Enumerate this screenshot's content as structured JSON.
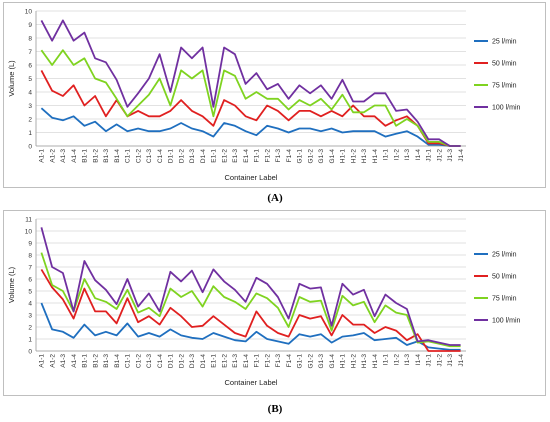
{
  "captions": {
    "a": "(A)",
    "b": "(B)"
  },
  "chart_data": [
    {
      "id": "A",
      "type": "line",
      "xlabel": "Container Label",
      "ylabel": "Volume (L)",
      "ylim": [
        0,
        10
      ],
      "yticks": [
        0,
        1,
        2,
        3,
        4,
        5,
        6,
        7,
        8,
        9,
        10
      ],
      "grid": true,
      "legend": "right",
      "categories": [
        "A1-1",
        "A1-2",
        "A1-3",
        "A1-4",
        "B1-1",
        "B1-2",
        "B1-3",
        "B1-4",
        "C1-1",
        "C1-2",
        "C1-3",
        "C1-4",
        "D1-1",
        "D1-2",
        "D1-3",
        "D1-4",
        "E1-1",
        "E1-2",
        "E1-3",
        "E1-4",
        "F1-1",
        "F1-2",
        "F1-3",
        "F1-4",
        "G1-1",
        "G1-2",
        "G1-3",
        "G1-4",
        "H1-1",
        "H1-2",
        "H1-3",
        "H1-4",
        "I1-1",
        "I1-2",
        "I1-3",
        "I1-4",
        "J1-1",
        "J1-2",
        "J1-3",
        "J1-4"
      ],
      "xticks": [
        "A1-1",
        "A1-2",
        "A1-3",
        "A1-4",
        "B1-1",
        "B1-2",
        "B1-3",
        "B1-4",
        "C1-1",
        "C1-2",
        "C1-3",
        "C1-4",
        "D1-1",
        "D1-2",
        "D1-3",
        "D1-4",
        "E1-1",
        "E1-2",
        "E1-3",
        "E1-4",
        "F1-1",
        "F1-2",
        "F1-3",
        "F1-4",
        "G1-1",
        "G1-2",
        "G1-3",
        "G1-4",
        "H1-1",
        "H1-2",
        "H1-3",
        "H1-4",
        "I1-1",
        "I1-2",
        "I1-3",
        "I1-4",
        "J1-1",
        "J1-2",
        "J1-3",
        "J1-4"
      ],
      "series": [
        {
          "name": "25 l/min",
          "color": "#1f6fbf",
          "values": [
            2.8,
            2.1,
            1.9,
            2.2,
            1.5,
            1.8,
            1.1,
            1.6,
            1.1,
            1.3,
            1.1,
            1.1,
            1.3,
            1.7,
            1.3,
            1.1,
            0.7,
            1.7,
            1.5,
            1.1,
            0.8,
            1.5,
            1.3,
            1.0,
            1.3,
            1.3,
            1.1,
            1.3,
            1.0,
            1.1,
            1.1,
            1.1,
            0.7,
            0.9,
            1.1,
            0.7,
            0.1,
            0.1,
            0.0,
            0.0
          ]
        },
        {
          "name": "50 l/min",
          "color": "#e02020",
          "values": [
            5.6,
            4.1,
            3.7,
            4.5,
            3.0,
            3.7,
            2.2,
            3.4,
            2.2,
            2.6,
            2.2,
            2.2,
            2.6,
            3.4,
            2.6,
            2.2,
            1.5,
            3.4,
            3.0,
            2.2,
            1.9,
            3.0,
            2.6,
            1.9,
            2.6,
            2.6,
            2.2,
            2.6,
            2.2,
            3.0,
            2.2,
            2.2,
            1.5,
            1.9,
            2.2,
            1.5,
            0.2,
            0.2,
            0.0,
            0.0
          ]
        },
        {
          "name": "75 l/min",
          "color": "#7fd320",
          "values": [
            7.1,
            6.0,
            7.1,
            6.0,
            6.5,
            5.0,
            4.7,
            3.5,
            2.2,
            3.0,
            3.8,
            5.0,
            3.0,
            5.6,
            5.0,
            5.6,
            2.2,
            5.6,
            5.2,
            3.5,
            4.0,
            3.5,
            3.5,
            2.7,
            3.4,
            3.0,
            3.5,
            2.7,
            3.8,
            2.5,
            2.5,
            3.0,
            3.0,
            1.5,
            2.0,
            1.5,
            0.3,
            0.3,
            0.0,
            0.0
          ]
        },
        {
          "name": "100 l/min",
          "color": "#7030a0",
          "values": [
            9.3,
            7.8,
            9.3,
            7.8,
            8.4,
            6.5,
            6.2,
            4.9,
            2.9,
            3.9,
            5.0,
            6.8,
            4.0,
            7.3,
            6.5,
            7.3,
            2.9,
            7.3,
            6.8,
            4.6,
            5.4,
            4.2,
            4.6,
            3.5,
            4.5,
            3.9,
            4.5,
            3.5,
            4.9,
            3.3,
            3.3,
            3.9,
            3.9,
            2.6,
            2.7,
            1.8,
            0.5,
            0.5,
            0.0,
            0.0
          ]
        }
      ]
    },
    {
      "id": "B",
      "type": "line",
      "xlabel": "Container Label",
      "ylabel": "Volume (L)",
      "ylim": [
        0,
        11
      ],
      "yticks": [
        0,
        1,
        2,
        3,
        4,
        5,
        6,
        7,
        8,
        9,
        10,
        11
      ],
      "grid": true,
      "legend": "right",
      "categories": [
        "A1-1",
        "A1-2",
        "A1-3",
        "A1-4",
        "B1-1",
        "B1-2",
        "B1-3",
        "B1-4",
        "C1-1",
        "C1-2",
        "C1-3",
        "C1-4",
        "D1-1",
        "D1-2",
        "D1-3",
        "D1-4",
        "E1-1",
        "E1-2",
        "E1-3",
        "E1-4",
        "F1-1",
        "F1-2",
        "F1-3",
        "F1-4",
        "G1-1",
        "G1-2",
        "G1-3",
        "G1-4",
        "H1-1",
        "H1-2",
        "H1-3",
        "H1-4",
        "I1-1",
        "I1-2",
        "I1-3",
        "I1-4",
        "J1-1",
        "J1-2",
        "J1-3",
        "J1-4"
      ],
      "xticks": [
        "A1-1",
        "A1-2",
        "A1-3",
        "A1-4",
        "B1-1",
        "B1-2",
        "B1-3",
        "B1-4",
        "C1-1",
        "C1-2",
        "C1-3",
        "C1-4",
        "D1-1",
        "D1-2",
        "D1-3",
        "D1-4",
        "E1-1",
        "E1-2",
        "E1-3",
        "E1-4",
        "F1-1",
        "F1-2",
        "F1-3",
        "F1-4",
        "G1-1",
        "G1-2",
        "G1-3",
        "G1-4",
        "H1-1",
        "H1-2",
        "H1-3",
        "H1-4",
        "I1-1",
        "I1-2",
        "I1-3",
        "I1-4",
        "J1-1",
        "J1-2",
        "J1-3",
        "J1-4"
      ],
      "series": [
        {
          "name": "25 l/min",
          "color": "#1f6fbf",
          "values": [
            4.0,
            1.8,
            1.6,
            1.1,
            2.2,
            1.3,
            1.6,
            1.3,
            2.3,
            1.2,
            1.5,
            1.2,
            1.8,
            1.3,
            1.1,
            1.0,
            1.5,
            1.2,
            0.9,
            0.8,
            1.6,
            1.0,
            0.8,
            0.6,
            1.4,
            1.2,
            1.4,
            0.7,
            1.2,
            1.3,
            1.5,
            0.9,
            1.0,
            1.1,
            0.5,
            0.8,
            0.3,
            0.2,
            0.1,
            0.1
          ]
        },
        {
          "name": "50 l/min",
          "color": "#e02020",
          "values": [
            6.8,
            5.3,
            4.3,
            2.7,
            5.2,
            3.3,
            3.3,
            2.3,
            4.4,
            2.4,
            2.9,
            2.2,
            3.6,
            2.9,
            2.0,
            2.1,
            2.9,
            2.2,
            1.5,
            1.2,
            3.3,
            2.1,
            1.5,
            1.2,
            3.0,
            2.7,
            2.9,
            1.3,
            3.0,
            2.2,
            2.2,
            1.5,
            2.0,
            1.7,
            0.9,
            1.4,
            0.0,
            0.0,
            0.0,
            0.0
          ]
        },
        {
          "name": "75 l/min",
          "color": "#7fd320",
          "values": [
            8.2,
            5.5,
            5.0,
            3.3,
            6.0,
            4.4,
            4.1,
            3.5,
            5.1,
            3.2,
            3.6,
            2.9,
            5.2,
            4.5,
            5.0,
            3.7,
            5.4,
            4.5,
            4.1,
            3.5,
            4.8,
            4.4,
            3.6,
            2.0,
            4.5,
            4.1,
            4.2,
            1.7,
            4.6,
            3.8,
            4.1,
            2.4,
            3.8,
            3.2,
            3.0,
            0.7,
            0.8,
            0.6,
            0.4,
            0.4
          ]
        },
        {
          "name": "100 l/min",
          "color": "#7030a0",
          "values": [
            10.3,
            7.0,
            6.5,
            3.3,
            7.5,
            5.9,
            5.1,
            3.9,
            6.0,
            3.7,
            4.8,
            3.3,
            6.6,
            5.8,
            6.7,
            4.9,
            6.8,
            5.8,
            5.1,
            4.1,
            6.1,
            5.6,
            4.5,
            2.7,
            5.6,
            5.2,
            5.3,
            2.1,
            5.6,
            4.7,
            5.1,
            2.9,
            4.7,
            4.0,
            3.5,
            0.8,
            0.9,
            0.7,
            0.5,
            0.5
          ]
        }
      ]
    }
  ]
}
